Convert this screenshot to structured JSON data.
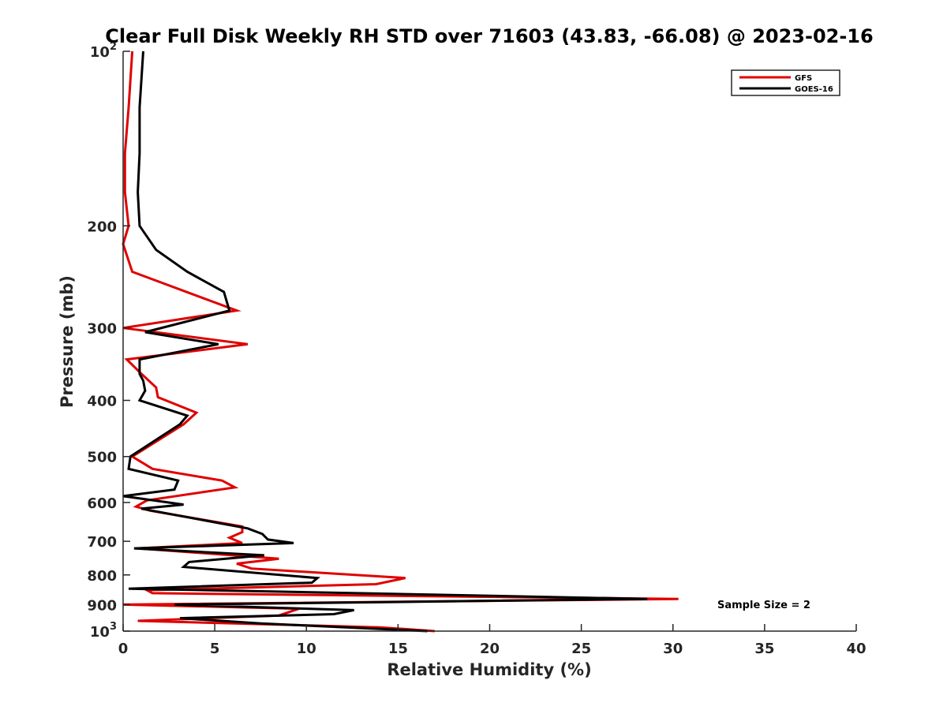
{
  "chart_data": {
    "type": "line",
    "title": "Clear Full Disk Weekly RH STD over 71603 (43.83, -66.08) @ 2023-02-16",
    "xlabel": "Relative Humidity (%)",
    "ylabel": "Pressure (mb)",
    "xlim": [
      0,
      40
    ],
    "ylim": [
      100,
      1000
    ],
    "y_scale": "log",
    "y_reversed": true,
    "x_ticks": [
      "0",
      "5",
      "10",
      "15",
      "20",
      "25",
      "30",
      "35",
      "40"
    ],
    "y_ticks": [
      {
        "value": 100,
        "base": "10",
        "exp": "2"
      },
      {
        "value": 200,
        "label": "200"
      },
      {
        "value": 300,
        "label": "300"
      },
      {
        "value": 400,
        "label": "400"
      },
      {
        "value": 500,
        "label": "500"
      },
      {
        "value": 600,
        "label": "600"
      },
      {
        "value": 700,
        "label": "700"
      },
      {
        "value": 800,
        "label": "800"
      },
      {
        "value": 900,
        "label": "900"
      },
      {
        "value": 1000,
        "base": "10",
        "exp": "3"
      }
    ],
    "legend_position": "top-right",
    "grid": false,
    "annotation": "Sample Size = 2",
    "series": [
      {
        "name": "GFS",
        "color": "#e00000",
        "points": [
          [
            0.5,
            100
          ],
          [
            0.3,
            125
          ],
          [
            0.1,
            150
          ],
          [
            0.1,
            175
          ],
          [
            0.3,
            200
          ],
          [
            0.0,
            215
          ],
          [
            0.5,
            240
          ],
          [
            6.2,
            280
          ],
          [
            0.0,
            300
          ],
          [
            6.8,
            320
          ],
          [
            0.2,
            340
          ],
          [
            1.0,
            360
          ],
          [
            1.8,
            380
          ],
          [
            1.9,
            395
          ],
          [
            4.0,
            420
          ],
          [
            3.3,
            440
          ],
          [
            0.5,
            500
          ],
          [
            1.6,
            525
          ],
          [
            5.4,
            550
          ],
          [
            6.1,
            565
          ],
          [
            1.3,
            595
          ],
          [
            0.7,
            610
          ],
          [
            1.5,
            620
          ],
          [
            6.5,
            660
          ],
          [
            6.5,
            675
          ],
          [
            5.8,
            690
          ],
          [
            6.5,
            705
          ],
          [
            0.8,
            720
          ],
          [
            8.5,
            750
          ],
          [
            6.2,
            765
          ],
          [
            7.0,
            780
          ],
          [
            15.4,
            810
          ],
          [
            13.8,
            830
          ],
          [
            1.3,
            850
          ],
          [
            1.6,
            860
          ],
          [
            30.3,
            880
          ],
          [
            0.0,
            900
          ],
          [
            9.6,
            915
          ],
          [
            8.5,
            940
          ],
          [
            0.8,
            960
          ],
          [
            14.0,
            985
          ],
          [
            17.0,
            1000
          ]
        ]
      },
      {
        "name": "GOES-16",
        "color": "#000000",
        "points": [
          [
            1.1,
            100
          ],
          [
            0.9,
            125
          ],
          [
            0.9,
            150
          ],
          [
            0.8,
            175
          ],
          [
            0.9,
            200
          ],
          [
            1.8,
            220
          ],
          [
            3.5,
            240
          ],
          [
            5.5,
            260
          ],
          [
            5.8,
            280
          ],
          [
            1.2,
            305
          ],
          [
            5.2,
            320
          ],
          [
            0.9,
            340
          ],
          [
            0.9,
            360
          ],
          [
            1.1,
            370
          ],
          [
            1.2,
            385
          ],
          [
            0.9,
            400
          ],
          [
            3.5,
            425
          ],
          [
            3.1,
            440
          ],
          [
            0.4,
            500
          ],
          [
            0.3,
            525
          ],
          [
            3.0,
            550
          ],
          [
            2.8,
            570
          ],
          [
            0.0,
            585
          ],
          [
            3.3,
            605
          ],
          [
            1.0,
            615
          ],
          [
            6.8,
            665
          ],
          [
            7.6,
            680
          ],
          [
            7.9,
            695
          ],
          [
            9.3,
            705
          ],
          [
            0.6,
            720
          ],
          [
            7.7,
            740
          ],
          [
            3.6,
            760
          ],
          [
            3.3,
            775
          ],
          [
            10.6,
            810
          ],
          [
            10.3,
            825
          ],
          [
            0.3,
            845
          ],
          [
            28.6,
            880
          ],
          [
            2.8,
            900
          ],
          [
            12.6,
            920
          ],
          [
            11.5,
            935
          ],
          [
            3.1,
            950
          ],
          [
            7.5,
            970
          ],
          [
            16.6,
            1000
          ]
        ]
      }
    ]
  }
}
